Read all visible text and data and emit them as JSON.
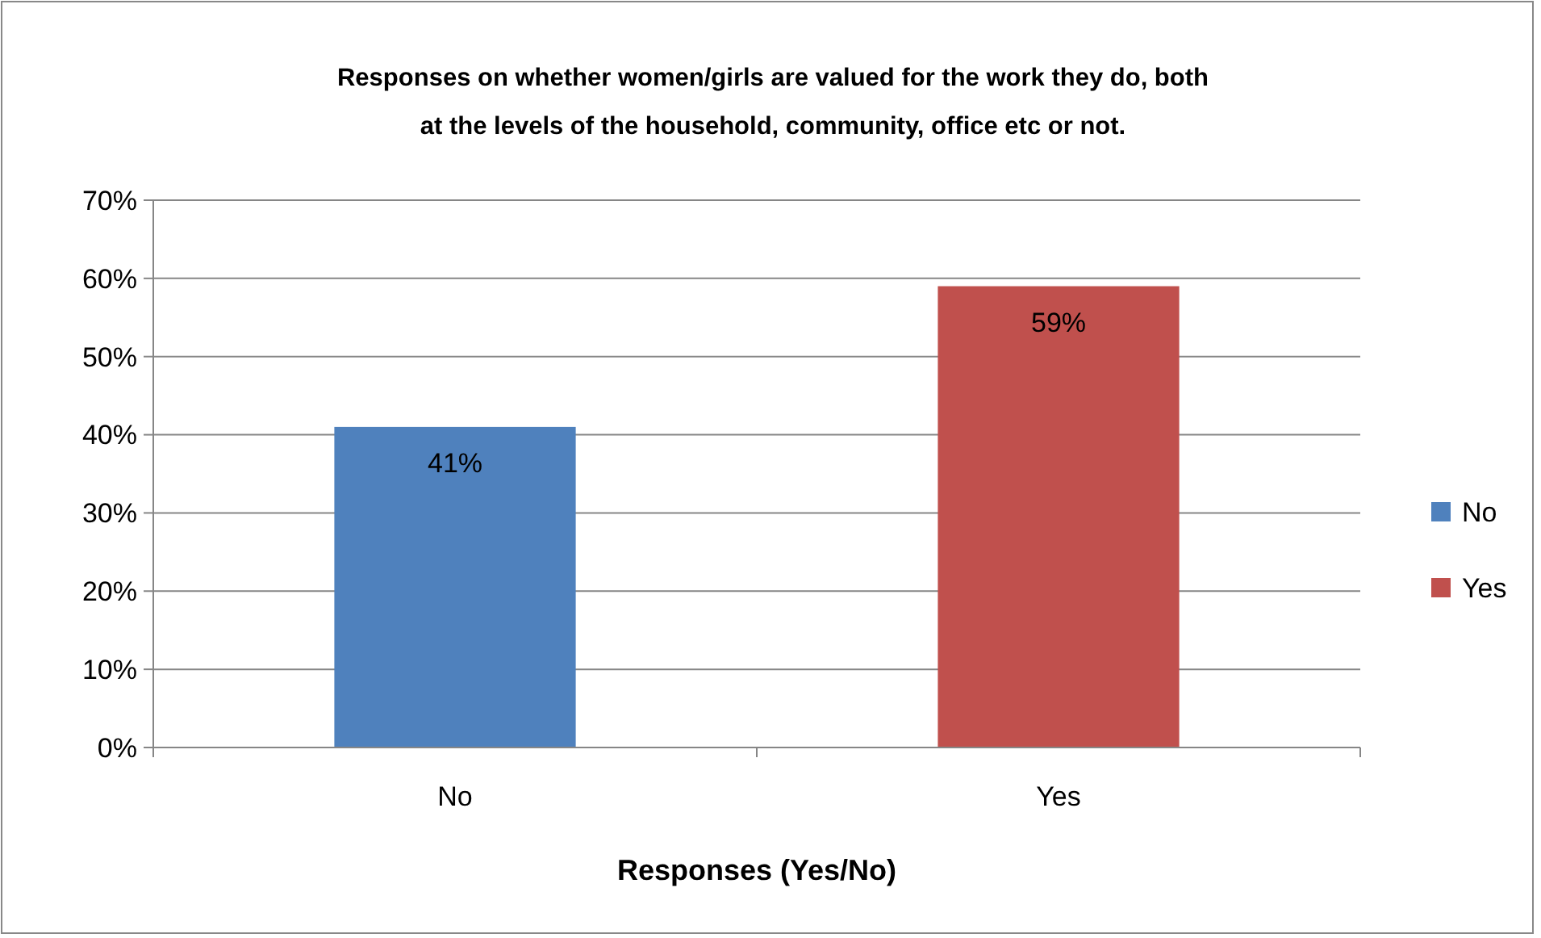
{
  "chart_data": {
    "type": "bar",
    "title": "Responses on whether women/girls are valued for the work they do, both at the levels of the household, community, office etc or not.",
    "xlabel": "Responses (Yes/No)",
    "categories": [
      "No",
      "Yes"
    ],
    "stacked": true,
    "series": [
      {
        "name": "No",
        "color": "#4f81bd",
        "values": [
          41,
          null
        ],
        "value_labels": [
          "41%",
          null
        ]
      },
      {
        "name": "Yes",
        "color": "#c0504d",
        "values": [
          null,
          59
        ],
        "value_labels": [
          null,
          "59%"
        ]
      }
    ],
    "ylim": [
      0,
      70
    ],
    "yticks": [
      {
        "value": 0,
        "label": "0%"
      },
      {
        "value": 10,
        "label": "10%"
      },
      {
        "value": 20,
        "label": "20%"
      },
      {
        "value": 30,
        "label": "30%"
      },
      {
        "value": 40,
        "label": "40%"
      },
      {
        "value": 50,
        "label": "50%"
      },
      {
        "value": 60,
        "label": "60%"
      },
      {
        "value": 70,
        "label": "70%"
      }
    ],
    "grid": "y",
    "legend": "right"
  }
}
